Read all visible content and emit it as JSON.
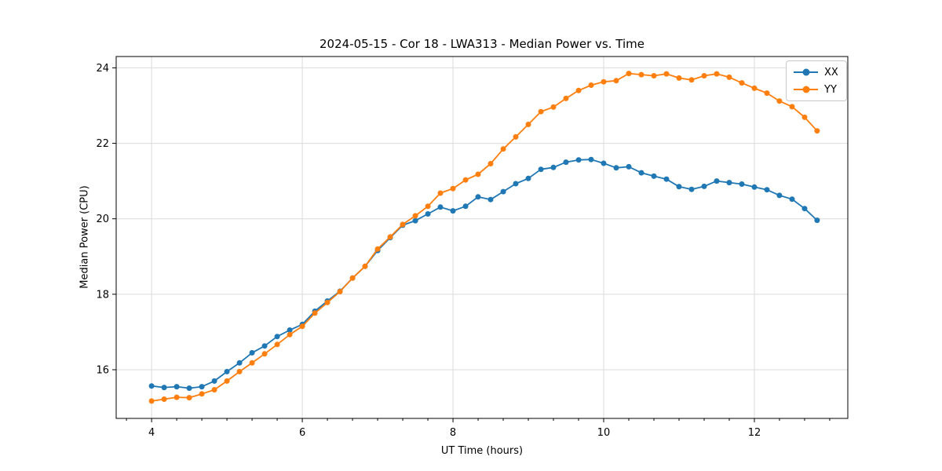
{
  "chart_data": {
    "type": "line",
    "title": "2024-05-15 - Cor 18 - LWA313 - Median Power vs. Time",
    "xlabel": "UT Time (hours)",
    "ylabel": "Median Power (CPU)",
    "xlim": [
      3.53,
      13.24
    ],
    "ylim": [
      14.71,
      24.3
    ],
    "xticks": [
      4,
      6,
      8,
      10,
      12
    ],
    "yticks": [
      16,
      18,
      20,
      22,
      24
    ],
    "x_minor_step": 0.33333,
    "grid": true,
    "grid_color": "#dbdbdb",
    "axis_color": "#000000",
    "legend_location": "upper right",
    "marker": "circle",
    "marker_size": 7,
    "line_width": 1.8,
    "x": [
      4.0,
      4.167,
      4.333,
      4.5,
      4.667,
      4.833,
      5.0,
      5.167,
      5.333,
      5.5,
      5.667,
      5.833,
      6.0,
      6.167,
      6.333,
      6.5,
      6.667,
      6.833,
      7.0,
      7.167,
      7.333,
      7.5,
      7.667,
      7.833,
      8.0,
      8.167,
      8.333,
      8.5,
      8.667,
      8.833,
      9.0,
      9.167,
      9.333,
      9.5,
      9.667,
      9.833,
      10.0,
      10.167,
      10.333,
      10.5,
      10.667,
      10.833,
      11.0,
      11.167,
      11.333,
      11.5,
      11.667,
      11.833,
      12.0,
      12.167,
      12.333,
      12.5,
      12.667,
      12.833
    ],
    "series": [
      {
        "name": "XX",
        "color": "#1f77b4",
        "values": [
          15.57,
          15.53,
          15.55,
          15.51,
          15.55,
          15.7,
          15.95,
          16.18,
          16.45,
          16.63,
          16.88,
          17.05,
          17.2,
          17.55,
          17.82,
          18.08,
          18.43,
          18.74,
          19.16,
          19.5,
          19.83,
          19.95,
          20.13,
          20.31,
          20.21,
          20.33,
          20.58,
          20.51,
          20.72,
          20.93,
          21.07,
          21.31,
          21.36,
          21.5,
          21.56,
          21.57,
          21.47,
          21.35,
          21.38,
          21.22,
          21.13,
          21.05,
          20.85,
          20.78,
          20.86,
          21.0,
          20.96,
          20.92,
          20.84,
          20.77,
          20.62,
          20.52,
          20.27,
          19.96
        ]
      },
      {
        "name": "YY",
        "color": "#ff7f0e",
        "values": [
          15.17,
          15.22,
          15.27,
          15.26,
          15.36,
          15.47,
          15.7,
          15.95,
          16.18,
          16.42,
          16.67,
          16.93,
          17.15,
          17.5,
          17.78,
          18.07,
          18.43,
          18.74,
          19.2,
          19.52,
          19.85,
          20.08,
          20.33,
          20.68,
          20.8,
          21.03,
          21.18,
          21.46,
          21.85,
          22.17,
          22.5,
          22.84,
          22.96,
          23.19,
          23.4,
          23.54,
          23.63,
          23.66,
          23.85,
          23.82,
          23.79,
          23.84,
          23.73,
          23.68,
          23.79,
          23.84,
          23.75,
          23.6,
          23.46,
          23.33,
          23.12,
          22.97,
          22.69,
          22.33
        ]
      }
    ]
  }
}
